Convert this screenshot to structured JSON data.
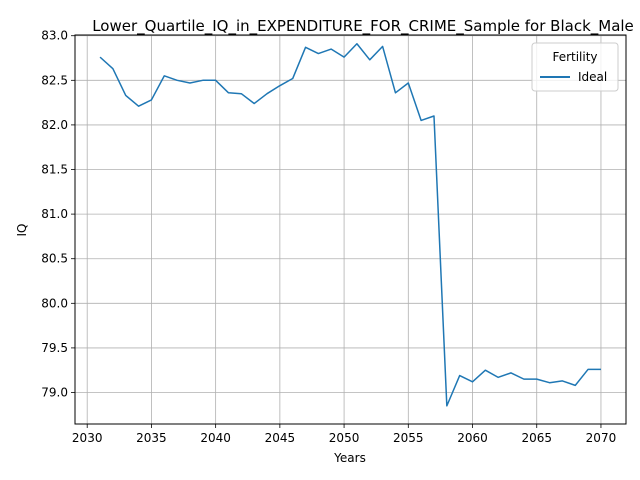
{
  "chart_data": {
    "type": "line",
    "title": "Lower_Quartile_IQ_in_EXPENDITURE_FOR_CRIME_Sample for Black_Male",
    "xlabel": "Years",
    "ylabel": "IQ",
    "xlim": [
      2029.05,
      2071.95
    ],
    "ylim": [
      78.647,
      83.008
    ],
    "xticks": [
      2030,
      2035,
      2040,
      2045,
      2050,
      2055,
      2060,
      2065,
      2070
    ],
    "yticks": [
      79.0,
      79.5,
      80.0,
      80.5,
      81.0,
      81.5,
      82.0,
      82.5,
      83.0
    ],
    "grid": true,
    "legend": {
      "title": "Fertility",
      "position": "top-right"
    },
    "x": [
      2031,
      2032,
      2033,
      2034,
      2035,
      2036,
      2037,
      2038,
      2039,
      2040,
      2041,
      2042,
      2043,
      2044,
      2045,
      2046,
      2047,
      2048,
      2049,
      2050,
      2051,
      2052,
      2053,
      2054,
      2055,
      2056,
      2057,
      2058,
      2059,
      2060,
      2061,
      2062,
      2063,
      2064,
      2065,
      2066,
      2067,
      2068,
      2069,
      2070
    ],
    "series": [
      {
        "name": "Ideal",
        "color": "#1f77b4",
        "values": [
          82.76,
          82.63,
          82.33,
          82.21,
          82.28,
          82.55,
          82.5,
          82.47,
          82.5,
          82.5,
          82.36,
          82.35,
          82.24,
          82.35,
          82.44,
          82.52,
          82.87,
          82.8,
          82.85,
          82.76,
          82.91,
          82.73,
          82.88,
          82.36,
          82.47,
          82.05,
          82.1,
          78.85,
          79.19,
          79.12,
          79.25,
          79.17,
          79.22,
          79.15,
          79.15,
          79.11,
          79.13,
          79.08,
          79.26,
          79.26
        ]
      }
    ]
  }
}
